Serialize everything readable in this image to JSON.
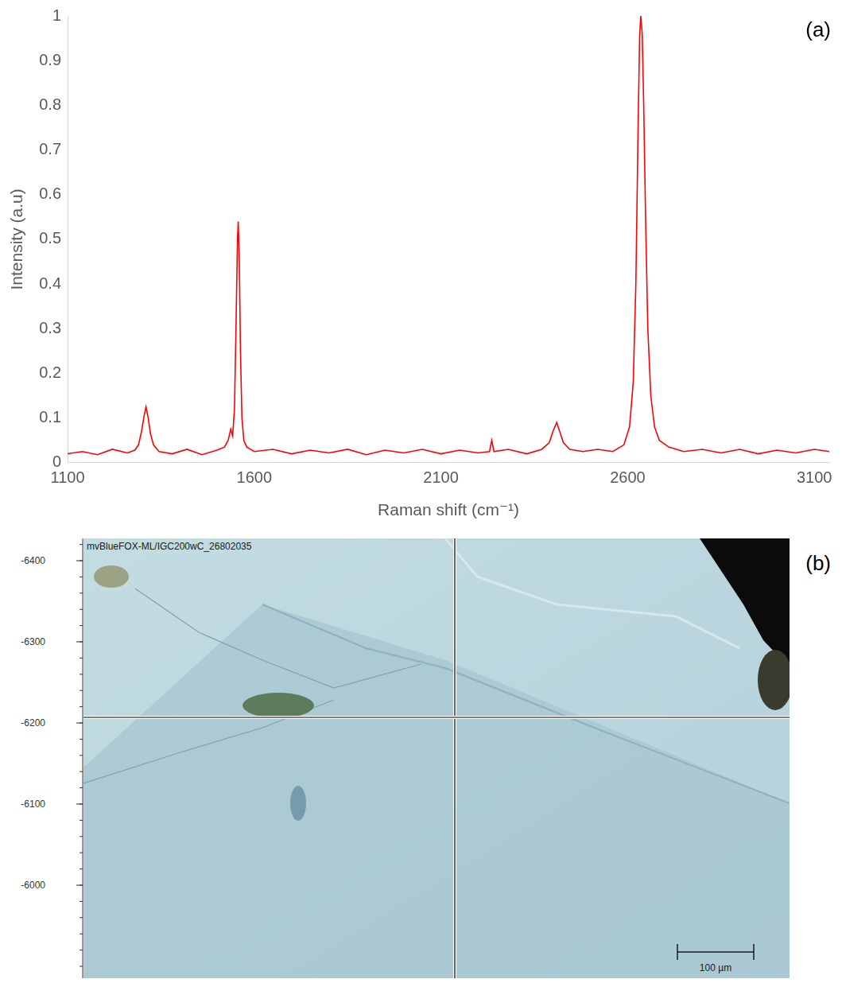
{
  "chart_data": {
    "type": "line",
    "panel_label": "(a)",
    "x_label": "Raman shift (cm⁻¹)",
    "y_label": "Intensity (a.u)",
    "x": [
      1100,
      1140,
      1180,
      1220,
      1260,
      1280,
      1290,
      1298,
      1305,
      1310,
      1316,
      1322,
      1330,
      1345,
      1380,
      1420,
      1460,
      1500,
      1520,
      1530,
      1537,
      1542,
      1547,
      1551,
      1555,
      1557,
      1560,
      1563,
      1567,
      1572,
      1580,
      1600,
      1650,
      1700,
      1750,
      1800,
      1850,
      1900,
      1950,
      2000,
      2050,
      2100,
      2150,
      2200,
      2230,
      2236,
      2242,
      2280,
      2330,
      2370,
      2390,
      2400,
      2410,
      2418,
      2428,
      2445,
      2480,
      2520,
      2560,
      2590,
      2605,
      2615,
      2622,
      2628,
      2632,
      2635,
      2639,
      2643,
      2648,
      2654,
      2662,
      2672,
      2685,
      2710,
      2750,
      2800,
      2850,
      2900,
      2950,
      3000,
      3050,
      3100,
      3140
    ],
    "values": [
      0.02,
      0.025,
      0.018,
      0.03,
      0.022,
      0.028,
      0.04,
      0.07,
      0.105,
      0.125,
      0.1,
      0.065,
      0.04,
      0.025,
      0.02,
      0.03,
      0.018,
      0.028,
      0.035,
      0.05,
      0.075,
      0.06,
      0.12,
      0.3,
      0.5,
      0.54,
      0.45,
      0.25,
      0.1,
      0.05,
      0.035,
      0.025,
      0.03,
      0.02,
      0.028,
      0.022,
      0.03,
      0.018,
      0.028,
      0.022,
      0.03,
      0.02,
      0.028,
      0.022,
      0.025,
      0.05,
      0.025,
      0.03,
      0.02,
      0.03,
      0.045,
      0.07,
      0.09,
      0.07,
      0.045,
      0.03,
      0.025,
      0.03,
      0.025,
      0.04,
      0.08,
      0.18,
      0.4,
      0.75,
      0.95,
      1.0,
      0.96,
      0.8,
      0.55,
      0.3,
      0.15,
      0.08,
      0.05,
      0.035,
      0.025,
      0.03,
      0.022,
      0.03,
      0.02,
      0.028,
      0.022,
      0.03,
      0.025
    ],
    "color": "#ff0000",
    "xlim": [
      1100,
      3140
    ],
    "xticks": [
      1100,
      1600,
      2100,
      2600,
      3100
    ],
    "ylim": [
      0,
      1
    ],
    "yticks": [
      0,
      0.1,
      0.2,
      0.3,
      0.4,
      0.5,
      0.6,
      0.7,
      0.8,
      0.9,
      1
    ],
    "grid": false
  },
  "image_panel": {
    "panel_label": "(b)",
    "caption": "mvBlueFOX-ML/IGC200wC_26802035",
    "yticks": [
      -6400,
      -6300,
      -6200,
      -6100,
      -6000
    ],
    "scale_bar": "100 µm"
  }
}
